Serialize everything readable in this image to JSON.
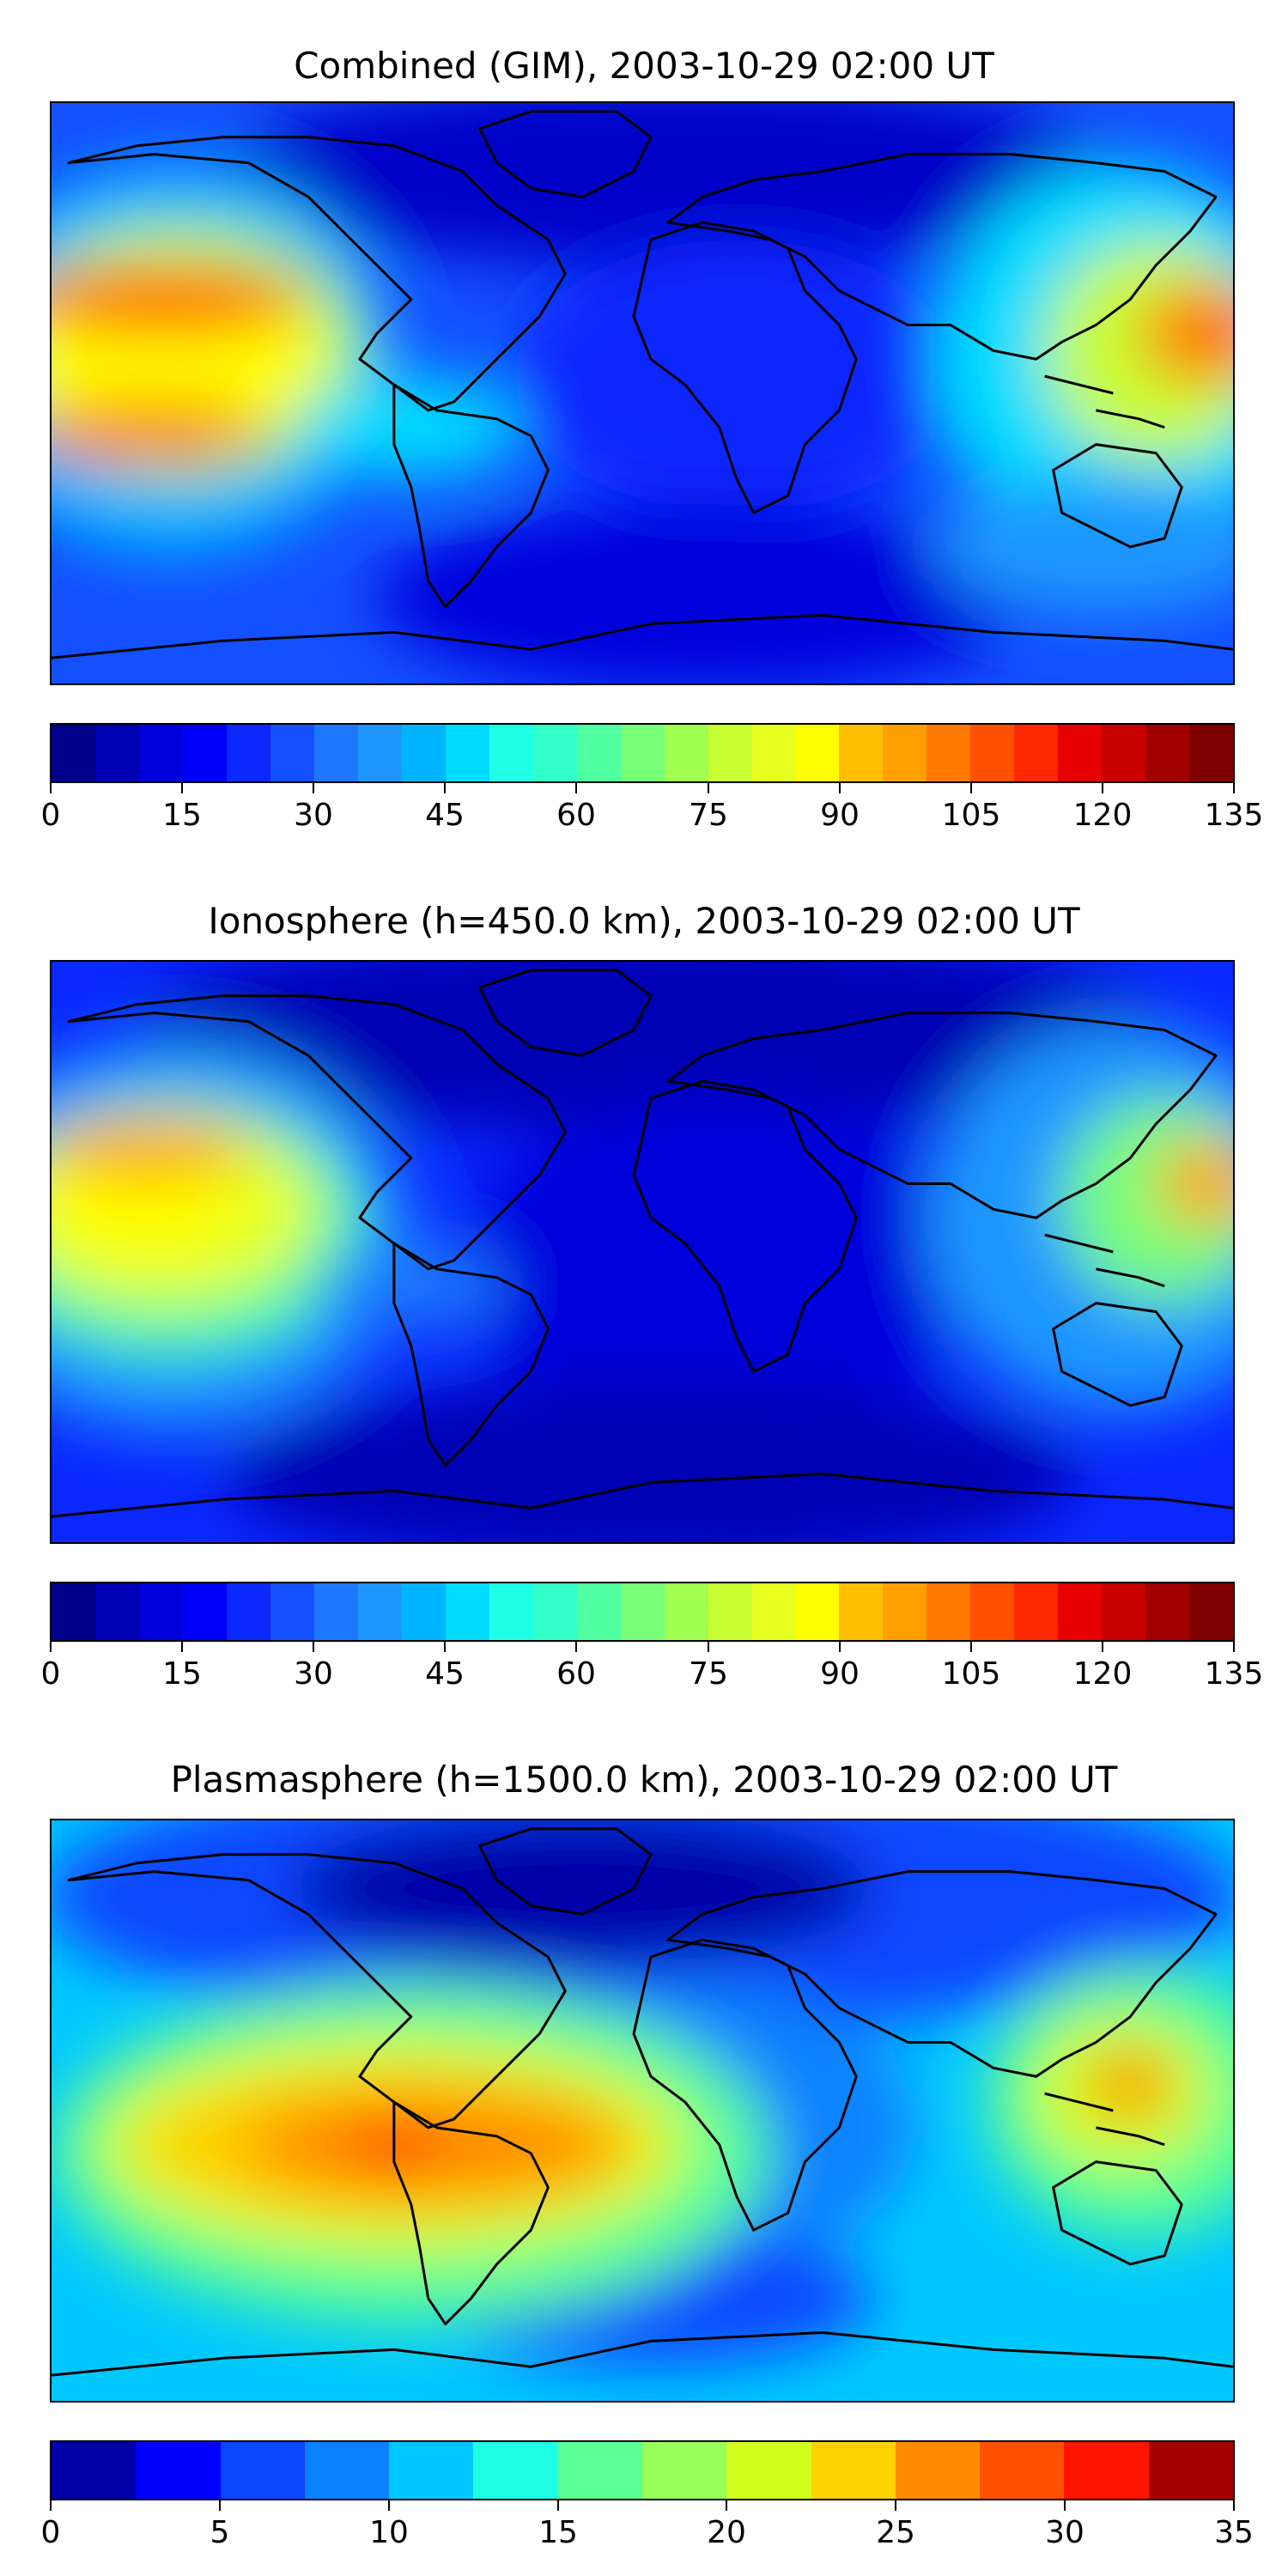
{
  "panels": [
    {
      "title": "Combined (GIM), 2003-10-29 02:00 UT",
      "colorbar": {
        "min": 0,
        "max": 135,
        "ticks": [
          "0",
          "15",
          "30",
          "45",
          "60",
          "75",
          "90",
          "105",
          "120",
          "135"
        ],
        "colors": [
          "#00008b",
          "#0000b4",
          "#0000dc",
          "#0000ff",
          "#0a28ff",
          "#1450ff",
          "#1e78ff",
          "#1e96ff",
          "#00b4ff",
          "#00dcff",
          "#1effe6",
          "#32ffc8",
          "#50ffa0",
          "#78ff78",
          "#a0ff50",
          "#c8ff32",
          "#e6ff1e",
          "#ffff00",
          "#ffbe00",
          "#ffa000",
          "#ff7800",
          "#ff5000",
          "#ff2800",
          "#e60000",
          "#c80000",
          "#a00000",
          "#800000"
        ]
      }
    },
    {
      "title": "Ionosphere  (h=450.0 km), 2003-10-29 02:00 UT",
      "colorbar": {
        "min": 0,
        "max": 135,
        "ticks": [
          "0",
          "15",
          "30",
          "45",
          "60",
          "75",
          "90",
          "105",
          "120",
          "135"
        ],
        "colors": [
          "#00008b",
          "#0000b4",
          "#0000dc",
          "#0000ff",
          "#0a28ff",
          "#1450ff",
          "#1e78ff",
          "#1e96ff",
          "#00b4ff",
          "#00dcff",
          "#1effe6",
          "#32ffc8",
          "#50ffa0",
          "#78ff78",
          "#a0ff50",
          "#c8ff32",
          "#e6ff1e",
          "#ffff00",
          "#ffbe00",
          "#ffa000",
          "#ff7800",
          "#ff5000",
          "#ff2800",
          "#e60000",
          "#c80000",
          "#a00000",
          "#800000"
        ]
      }
    },
    {
      "title": "Plasmasphere (h=1500.0 km), 2003-10-29 02:00 UT",
      "colorbar": {
        "min": 0,
        "max": 35,
        "ticks": [
          "0",
          "5",
          "10",
          "15",
          "20",
          "25",
          "30",
          "35"
        ],
        "colors": [
          "#0000a8",
          "#0000ff",
          "#0a46ff",
          "#0a82ff",
          "#00c8ff",
          "#1effe6",
          "#5aff96",
          "#96ff5a",
          "#d2ff1e",
          "#ffd200",
          "#ff8c00",
          "#ff5000",
          "#ff1400",
          "#a80000"
        ]
      }
    }
  ]
}
